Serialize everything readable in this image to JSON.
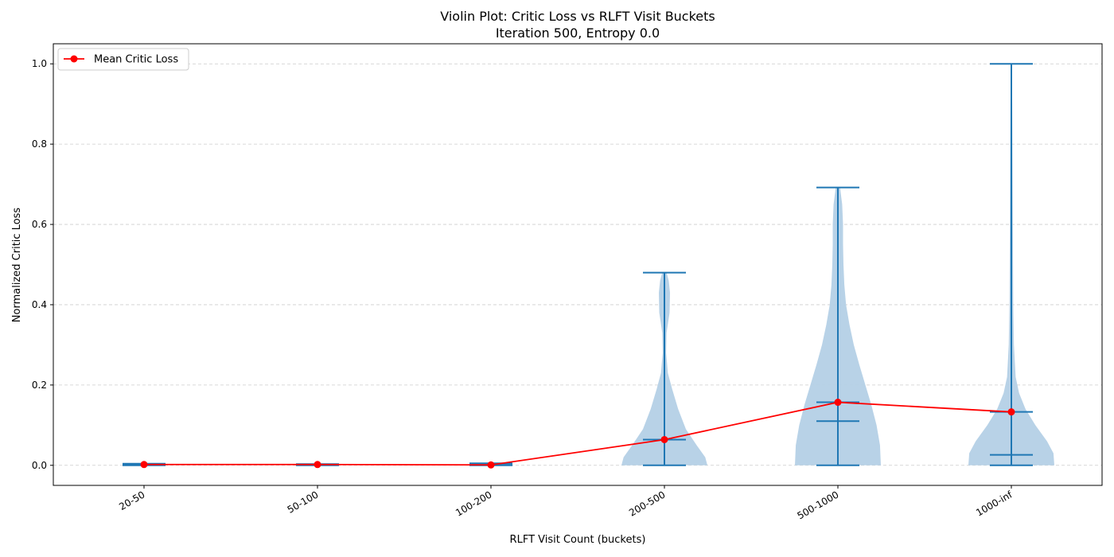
{
  "chart_data": {
    "type": "violin",
    "title": "Violin Plot: Critic Loss vs RLFT Visit Buckets",
    "subtitle": "Iteration 500, Entropy 0.0",
    "xlabel": "RLFT Visit Count (buckets)",
    "ylabel": "Normalized Critic Loss",
    "ylim": [
      -0.05,
      1.05
    ],
    "yticks": [
      "0.0",
      "0.2",
      "0.4",
      "0.6",
      "0.8",
      "1.0"
    ],
    "grid": "y-dashed",
    "legend_position": "top-left",
    "categories": [
      "20-50",
      "50-100",
      "100-200",
      "200-500",
      "500-1000",
      "1000-inf"
    ],
    "violins": [
      {
        "min": 0.0,
        "max": 0.004,
        "mean": 0.002,
        "median": 0.001,
        "profile": [
          [
            0.0,
            0.5
          ],
          [
            0.002,
            0.5
          ],
          [
            0.004,
            0.5
          ]
        ]
      },
      {
        "min": 0.0,
        "max": 0.003,
        "mean": 0.002,
        "median": 0.001,
        "profile": [
          [
            0.0,
            0.5
          ],
          [
            0.0015,
            0.5
          ],
          [
            0.003,
            0.5
          ]
        ]
      },
      {
        "min": 0.0,
        "max": 0.005,
        "mean": 0.001,
        "median": 0.001,
        "profile": [
          [
            0.0,
            0.5
          ],
          [
            0.0025,
            0.5
          ],
          [
            0.005,
            0.5
          ]
        ]
      },
      {
        "min": 0.0,
        "max": 0.48,
        "mean": 0.064,
        "median": 0.064,
        "profile": [
          [
            0.0,
            1.0
          ],
          [
            0.02,
            0.95
          ],
          [
            0.05,
            0.75
          ],
          [
            0.09,
            0.5
          ],
          [
            0.14,
            0.32
          ],
          [
            0.19,
            0.18
          ],
          [
            0.23,
            0.08
          ],
          [
            0.28,
            0.04
          ],
          [
            0.33,
            0.05
          ],
          [
            0.38,
            0.12
          ],
          [
            0.43,
            0.13
          ],
          [
            0.46,
            0.1
          ],
          [
            0.48,
            0.05
          ]
        ]
      },
      {
        "min": 0.0,
        "max": 0.692,
        "mean": 0.157,
        "median": 0.11,
        "profile": [
          [
            0.0,
            1.0
          ],
          [
            0.05,
            0.98
          ],
          [
            0.1,
            0.9
          ],
          [
            0.15,
            0.78
          ],
          [
            0.2,
            0.64
          ],
          [
            0.25,
            0.5
          ],
          [
            0.3,
            0.37
          ],
          [
            0.35,
            0.27
          ],
          [
            0.4,
            0.19
          ],
          [
            0.45,
            0.15
          ],
          [
            0.5,
            0.13
          ],
          [
            0.55,
            0.12
          ],
          [
            0.6,
            0.12
          ],
          [
            0.65,
            0.1
          ],
          [
            0.692,
            0.05
          ]
        ]
      },
      {
        "min": 0.0,
        "max": 1.0,
        "mean": 0.133,
        "median": 0.026,
        "profile": [
          [
            0.0,
            1.0
          ],
          [
            0.03,
            0.98
          ],
          [
            0.06,
            0.83
          ],
          [
            0.1,
            0.56
          ],
          [
            0.14,
            0.33
          ],
          [
            0.18,
            0.18
          ],
          [
            0.22,
            0.1
          ],
          [
            0.3,
            0.06
          ],
          [
            0.4,
            0.045
          ],
          [
            0.5,
            0.04
          ],
          [
            0.6,
            0.035
          ],
          [
            0.7,
            0.03
          ],
          [
            0.8,
            0.025
          ],
          [
            0.9,
            0.02
          ],
          [
            1.0,
            0.01
          ]
        ]
      }
    ],
    "mean_line": {
      "name": "Mean Critic Loss",
      "values": [
        0.002,
        0.002,
        0.001,
        0.064,
        0.157,
        0.133
      ]
    }
  },
  "colors": {
    "violin_fill": "#b4d0e6",
    "violin_line": "#1f77b4",
    "mean_line": "#ff0000",
    "grid": "#cccccc"
  }
}
